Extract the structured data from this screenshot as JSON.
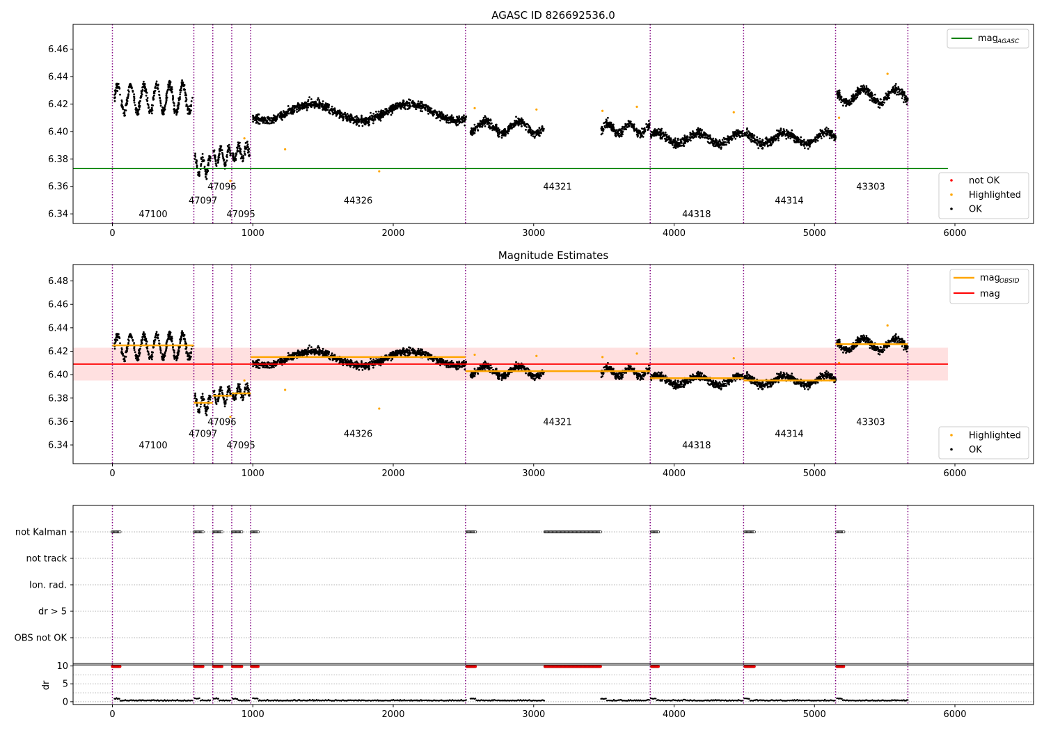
{
  "chart_data": [
    {
      "type": "scatter",
      "title": "AGASC ID 826692536.0",
      "xlabel": "",
      "ylabel": "",
      "xlim": [
        -280,
        6560
      ],
      "ylim": [
        6.333,
        6.478
      ],
      "xticks": [
        0,
        1000,
        2000,
        3000,
        4000,
        5000,
        6000
      ],
      "xtick_labels": [
        "0",
        "1000",
        "2000",
        "3000",
        "4000",
        "5000",
        "6000"
      ],
      "yticks": [
        6.34,
        6.36,
        6.38,
        6.4,
        6.42,
        6.44,
        6.46
      ],
      "ytick_labels": [
        "6.34",
        "6.36",
        "6.38",
        "6.40",
        "6.42",
        "6.44",
        "6.46"
      ],
      "grid": false,
      "hlines": [
        {
          "name": "mag",
          "subscript": "AGASC",
          "y": 6.373,
          "x": [
            -280,
            5950
          ],
          "color": "#008000"
        }
      ],
      "vlines": [
        0,
        580,
        715,
        850,
        985,
        2515,
        3830,
        4495,
        5150,
        5665
      ],
      "segments": [
        {
          "x": [
            15,
            570
          ],
          "y": [
            6.424,
            6.424
          ],
          "amp": 0.01
        },
        {
          "x": [
            585,
            700
          ],
          "y": [
            6.375,
            6.375
          ],
          "amp": 0.006
        },
        {
          "x": [
            720,
            845
          ],
          "y": [
            6.382,
            6.382
          ],
          "amp": 0.006
        },
        {
          "x": [
            855,
            980
          ],
          "y": [
            6.385,
            6.385
          ],
          "amp": 0.005
        },
        {
          "x": [
            1000,
            2520
          ],
          "y": [
            6.414,
            6.414
          ],
          "amp": 0.006
        },
        {
          "x": [
            2550,
            3075
          ],
          "y": [
            6.403,
            6.403
          ],
          "amp": 0.004
        },
        {
          "x": [
            3480,
            3825
          ],
          "y": [
            6.402,
            6.402
          ],
          "amp": 0.004
        },
        {
          "x": [
            3835,
            4490
          ],
          "y": [
            6.395,
            6.395
          ],
          "amp": 0.004
        },
        {
          "x": [
            4500,
            5150
          ],
          "y": [
            6.395,
            6.395
          ],
          "amp": 0.004
        },
        {
          "x": [
            5160,
            5665
          ],
          "y": [
            6.426,
            6.426
          ],
          "amp": 0.005
        }
      ],
      "highlighted": [
        [
          840,
          6.364
        ],
        [
          940,
          6.395
        ],
        [
          1230,
          6.387
        ],
        [
          1900,
          6.371
        ],
        [
          2580,
          6.417
        ],
        [
          3020,
          6.416
        ],
        [
          3490,
          6.415
        ],
        [
          3735,
          6.418
        ],
        [
          4425,
          6.414
        ],
        [
          5175,
          6.41
        ],
        [
          5520,
          6.442
        ]
      ],
      "obsid_labels": [
        {
          "label": "47100",
          "x": 290,
          "y": 6.34
        },
        {
          "label": "47097",
          "x": 645,
          "y": 6.35
        },
        {
          "label": "47096",
          "x": 780,
          "y": 6.36
        },
        {
          "label": "47095",
          "x": 915,
          "y": 6.34
        },
        {
          "label": "44326",
          "x": 1750,
          "y": 6.35
        },
        {
          "label": "44321",
          "x": 3170,
          "y": 6.36
        },
        {
          "label": "44318",
          "x": 4160,
          "y": 6.34
        },
        {
          "label": "44314",
          "x": 4820,
          "y": 6.35
        },
        {
          "label": "43303",
          "x": 5400,
          "y": 6.36
        }
      ],
      "legend": {
        "location": "upper right",
        "entries": [
          {
            "label": "mag",
            "subscript": "AGASC",
            "color": "#008000"
          }
        ]
      },
      "legend2": {
        "location": "lower right",
        "entries": [
          {
            "label": "not OK",
            "color": "#ff0000"
          },
          {
            "label": "Highlighted",
            "color": "#ffa500"
          },
          {
            "label": "OK",
            "color": "#000000"
          }
        ]
      }
    },
    {
      "type": "scatter",
      "title": "Magnitude Estimates",
      "xlabel": "",
      "ylabel": "",
      "xlim": [
        -280,
        6560
      ],
      "ylim": [
        6.324,
        6.494
      ],
      "xticks": [
        0,
        1000,
        2000,
        3000,
        4000,
        5000,
        6000
      ],
      "xtick_labels": [
        "0",
        "1000",
        "2000",
        "3000",
        "4000",
        "5000",
        "6000"
      ],
      "yticks": [
        6.34,
        6.36,
        6.38,
        6.4,
        6.42,
        6.44,
        6.46,
        6.48
      ],
      "ytick_labels": [
        "6.34",
        "6.36",
        "6.38",
        "6.40",
        "6.42",
        "6.44",
        "6.46",
        "6.48"
      ],
      "grid": false,
      "band": {
        "y": [
          6.395,
          6.423
        ],
        "x": [
          -280,
          5950
        ],
        "color": "#ffcccc"
      },
      "hlines": [
        {
          "name": "mag",
          "y": 6.409,
          "x": [
            -280,
            5950
          ],
          "color": "#ff0000"
        }
      ],
      "obsid_mag_steps": [
        {
          "x": [
            0,
            580
          ],
          "y": 6.425
        },
        {
          "x": [
            580,
            715
          ],
          "y": 6.376
        },
        {
          "x": [
            715,
            850
          ],
          "y": 6.382
        },
        {
          "x": [
            850,
            985
          ],
          "y": 6.384
        },
        {
          "x": [
            985,
            2515
          ],
          "y": 6.415
        },
        {
          "x": [
            2515,
            3830
          ],
          "y": 6.403
        },
        {
          "x": [
            3830,
            4495
          ],
          "y": 6.397
        },
        {
          "x": [
            4495,
            5150
          ],
          "y": 6.395
        },
        {
          "x": [
            5150,
            5665
          ],
          "y": 6.426
        }
      ],
      "legend": {
        "location": "upper right",
        "entries": [
          {
            "label": "mag",
            "subscript": "OBSID",
            "color": "#ffa500"
          },
          {
            "label": "mag",
            "color": "#ff0000"
          }
        ]
      },
      "legend2": {
        "location": "lower right",
        "entries": [
          {
            "label": "Highlighted",
            "color": "#ffa500"
          },
          {
            "label": "OK",
            "color": "#000000"
          }
        ]
      }
    },
    {
      "type": "scatter",
      "title": "",
      "xlim": [
        -280,
        6560
      ],
      "categories": [
        "not Kalman",
        "not track",
        "Ion. rad.",
        "dr > 5",
        "OBS not OK"
      ],
      "flags": [
        {
          "category": "not Kalman",
          "x": [
            [
              0,
              55
            ],
            [
              585,
              650
            ],
            [
              720,
              780
            ],
            [
              855,
              925
            ],
            [
              990,
              1040
            ],
            [
              2525,
              2590
            ],
            [
              3080,
              3480
            ],
            [
              3840,
              3890
            ],
            [
              4505,
              4575
            ],
            [
              5160,
              5210
            ]
          ]
        }
      ],
      "grid": true
    },
    {
      "type": "scatter",
      "title": "",
      "xlabel": "",
      "ylabel": "dr",
      "xlim": [
        -280,
        6560
      ],
      "ylim": [
        -0.8,
        10.7
      ],
      "xticks": [
        0,
        1000,
        2000,
        3000,
        4000,
        5000,
        6000
      ],
      "xtick_labels": [
        "0",
        "1000",
        "2000",
        "3000",
        "4000",
        "5000",
        "6000"
      ],
      "yticks": [
        0,
        5,
        10
      ],
      "ytick_labels": [
        "0",
        "5",
        "10"
      ],
      "hlines": [
        {
          "y": 10,
          "color": "#000000"
        }
      ],
      "capped_points": [
        [
          0,
          55
        ],
        [
          585,
          650
        ],
        [
          720,
          780
        ],
        [
          855,
          925
        ],
        [
          990,
          1040
        ],
        [
          2525,
          2590
        ],
        [
          3080,
          3480
        ],
        [
          3840,
          3890
        ],
        [
          4505,
          4575
        ],
        [
          5160,
          5210
        ]
      ],
      "grid": true
    }
  ]
}
